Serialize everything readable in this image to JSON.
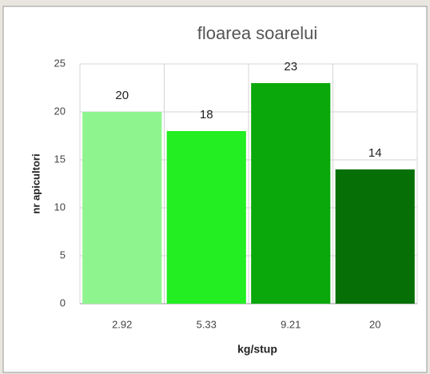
{
  "chart_data": {
    "type": "bar",
    "title": "floarea soarelui",
    "x_label": "kg/stup",
    "y_label": "nr apicultori",
    "categories": [
      "2.92",
      "5.33",
      "9.21",
      "20"
    ],
    "values": [
      20,
      18,
      23,
      14
    ],
    "colors": [
      "#8ef58e",
      "#22ee22",
      "#0aa80a",
      "#067006"
    ],
    "ylim": [
      0,
      25
    ],
    "yticks": [
      0,
      5,
      10,
      15,
      20,
      25
    ],
    "grid": true
  }
}
